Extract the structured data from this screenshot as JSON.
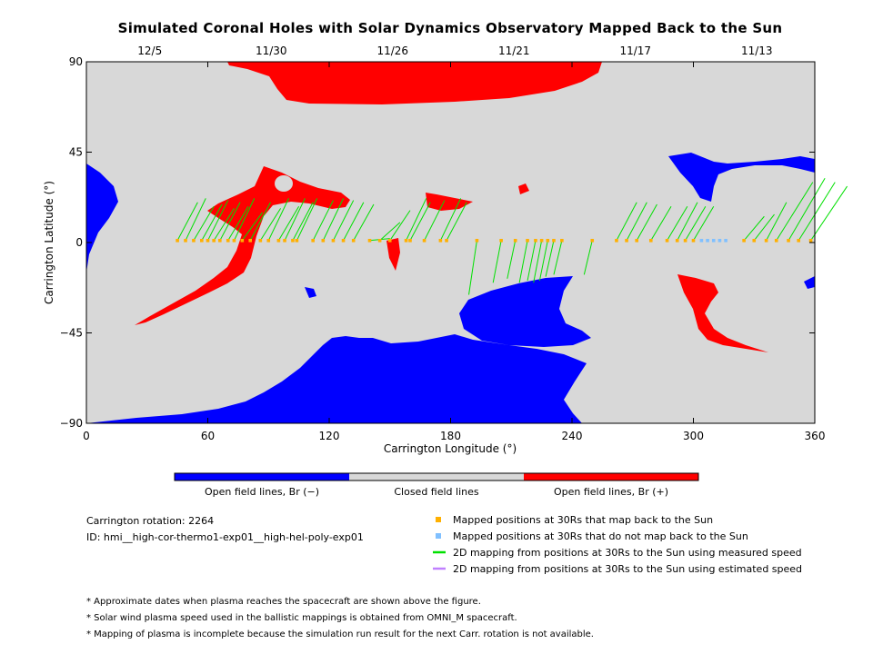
{
  "chart_data": {
    "type": "map",
    "title": "Simulated Coronal Holes with Solar Dynamics Observatory Mapped Back to the Sun",
    "xlabel": "Carrington Longitude (°)",
    "ylabel": "Carrington Latitude (°)",
    "xlim": [
      0,
      360
    ],
    "ylim": [
      -90,
      90
    ],
    "x_ticks": [
      "0",
      "60",
      "120",
      "180",
      "240",
      "300",
      "360"
    ],
    "y_ticks": [
      "90",
      "45",
      "0",
      "−45",
      "−90"
    ],
    "top_axis_dates": [
      {
        "label": "12/5",
        "lon": 30
      },
      {
        "label": "11/30",
        "lon": 90
      },
      {
        "label": "11/26",
        "lon": 150
      },
      {
        "label": "11/21",
        "lon": 210
      },
      {
        "label": "11/17",
        "lon": 270
      },
      {
        "label": "11/13",
        "lon": 330
      }
    ],
    "colorbar": [
      {
        "label": "Open field lines, Br (−)",
        "color": "#0000ff"
      },
      {
        "label": "Closed field lines",
        "color": "#d8d8d8"
      },
      {
        "label": "Open field lines, Br (+)",
        "color": "#ff0000"
      }
    ],
    "mapped_points": [
      {
        "lon": 45,
        "foot_lat": 20
      },
      {
        "lon": 49,
        "foot_lat": 22
      },
      {
        "lon": 53,
        "foot_lat": 18
      },
      {
        "lon": 57,
        "foot_lat": 19
      },
      {
        "lon": 60,
        "foot_lat": 21
      },
      {
        "lon": 63,
        "foot_lat": 17
      },
      {
        "lon": 66,
        "foot_lat": 20
      },
      {
        "lon": 70,
        "foot_lat": 18
      },
      {
        "lon": 73,
        "foot_lat": 22
      },
      {
        "lon": 77,
        "foot_lat": 15
      },
      {
        "lon": 81,
        "foot_lat": 20
      },
      {
        "lon": 86,
        "foot_lat": 17
      },
      {
        "lon": 90,
        "foot_lat": 22
      },
      {
        "lon": 95,
        "foot_lat": 18
      },
      {
        "lon": 98,
        "foot_lat": 22
      },
      {
        "lon": 102,
        "foot_lat": 20
      },
      {
        "lon": 104,
        "foot_lat": 22
      },
      {
        "lon": 112,
        "foot_lat": 21
      },
      {
        "lon": 117,
        "foot_lat": 22
      },
      {
        "lon": 122,
        "foot_lat": 21
      },
      {
        "lon": 127,
        "foot_lat": 20
      },
      {
        "lon": 132,
        "foot_lat": 19
      },
      {
        "lon": 140,
        "foot_lat": 2
      },
      {
        "lon": 145,
        "foot_lat": 10
      },
      {
        "lon": 150,
        "foot_lat": 16
      },
      {
        "lon": 158,
        "foot_lat": 22
      },
      {
        "lon": 160,
        "foot_lat": 20
      },
      {
        "lon": 167,
        "foot_lat": 21
      },
      {
        "lon": 175,
        "foot_lat": 22
      },
      {
        "lon": 178,
        "foot_lat": 20
      },
      {
        "lon": 193,
        "foot_lat": -26
      },
      {
        "lon": 205,
        "foot_lat": -20
      },
      {
        "lon": 212,
        "foot_lat": -18
      },
      {
        "lon": 218,
        "foot_lat": -20
      },
      {
        "lon": 222,
        "foot_lat": -19
      },
      {
        "lon": 225,
        "foot_lat": -20
      },
      {
        "lon": 228,
        "foot_lat": -19
      },
      {
        "lon": 231,
        "foot_lat": -17
      },
      {
        "lon": 235,
        "foot_lat": -16
      },
      {
        "lon": 250,
        "foot_lat": -16
      },
      {
        "lon": 262,
        "foot_lat": 20
      },
      {
        "lon": 267,
        "foot_lat": 20
      },
      {
        "lon": 272,
        "foot_lat": 19
      },
      {
        "lon": 279,
        "foot_lat": 18
      },
      {
        "lon": 287,
        "foot_lat": 18
      },
      {
        "lon": 292,
        "foot_lat": 20
      },
      {
        "lon": 296,
        "foot_lat": 18
      },
      {
        "lon": 300,
        "foot_lat": 18
      },
      {
        "lon": 325,
        "foot_lat": 13
      },
      {
        "lon": 330,
        "foot_lat": 14
      },
      {
        "lon": 336,
        "foot_lat": 20
      },
      {
        "lon": 341,
        "foot_lat": 30
      },
      {
        "lon": 347,
        "foot_lat": 32
      },
      {
        "lon": 352,
        "foot_lat": 30
      },
      {
        "lon": 358,
        "foot_lat": 28
      }
    ],
    "unmapped_points": [
      {
        "lon": 304
      },
      {
        "lon": 307
      },
      {
        "lon": 310
      },
      {
        "lon": 313
      },
      {
        "lon": 316
      }
    ],
    "legend": [
      {
        "label": "Mapped positions at 30Rs that map back to the Sun",
        "color": "#ffb000",
        "kind": "square"
      },
      {
        "label": "Mapped positions at 30Rs that do not map back to the Sun",
        "color": "#80c0ff",
        "kind": "square"
      },
      {
        "label": "2D mapping from positions at 30Rs to the Sun using measured speed",
        "color": "#00e000",
        "kind": "line"
      },
      {
        "label": "2D mapping from positions at 30Rs to the Sun using estimated speed",
        "color": "#c080ff",
        "kind": "line"
      }
    ]
  },
  "info": {
    "rotation": "Carrington rotation: 2264",
    "id": "ID: hmi__high-cor-thermo1-exp01__high-hel-poly-exp01"
  },
  "notes": [
    "* Approximate dates when plasma reaches the spacecraft are shown above the figure.",
    "* Solar wind plasma speed used in the ballistic mappings is obtained from OMNI_M spacecraft.",
    "* Mapping of plasma is incomplete because the simulation run result for the next Carr. rotation is not available."
  ]
}
